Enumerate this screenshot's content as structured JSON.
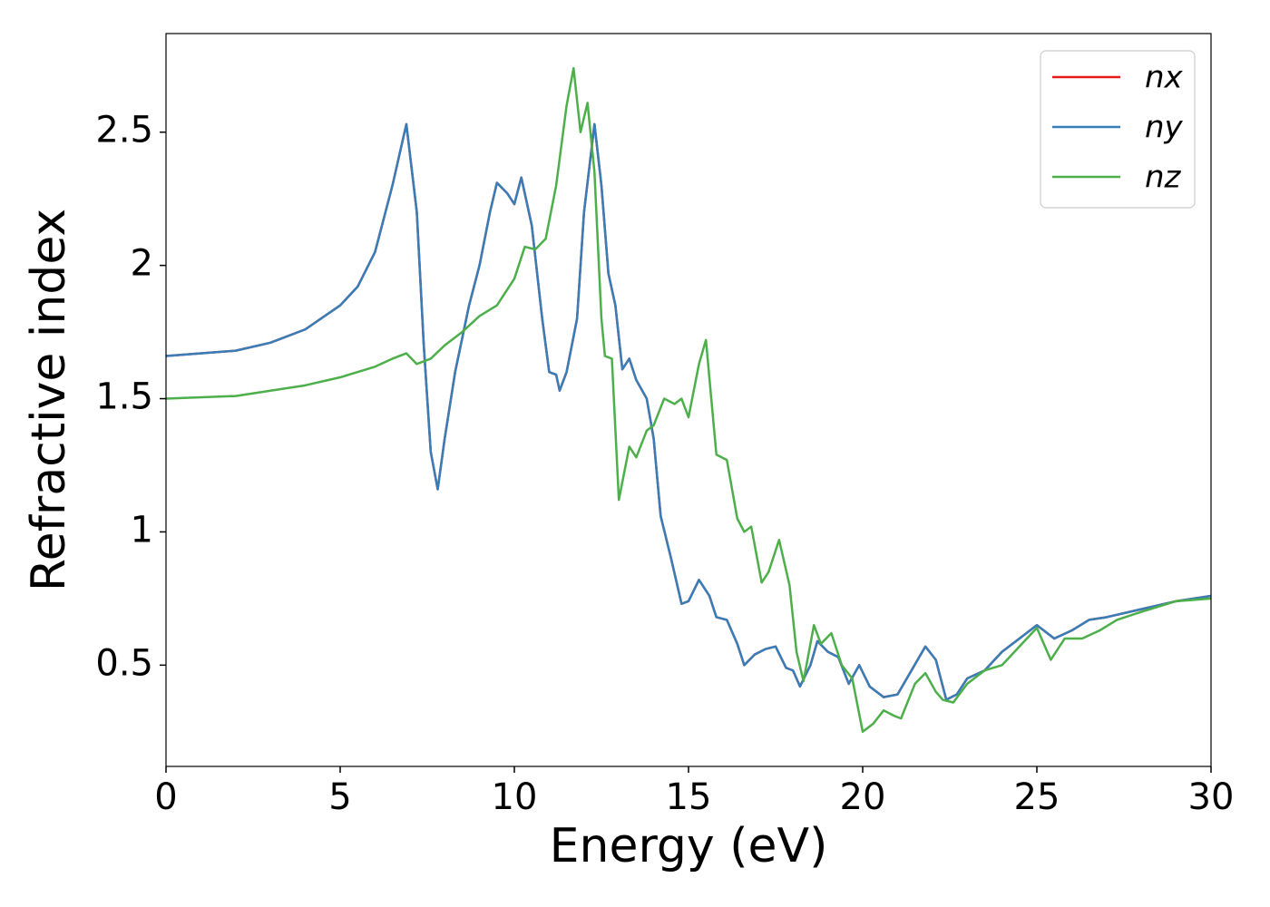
{
  "chart_data": {
    "type": "line",
    "xlabel": "Energy (eV)",
    "ylabel": "Refractive index",
    "xlim": [
      0,
      30
    ],
    "xticks": [
      0,
      5,
      10,
      15,
      20,
      25,
      30
    ],
    "ylim": [
      0.12,
      2.87
    ],
    "yticks": [
      0.5,
      1.0,
      1.5,
      2.0,
      2.5
    ],
    "legend": "upper right",
    "series": [
      {
        "name": "nx",
        "color": "#e41a1c",
        "x": [
          0,
          2,
          3,
          4,
          5,
          5.5,
          6,
          6.5,
          6.9,
          7.2,
          7.4,
          7.6,
          7.8,
          8.0,
          8.3,
          8.7,
          9.0,
          9.3,
          9.5,
          9.8,
          10.0,
          10.2,
          10.5,
          10.8,
          11.0,
          11.2,
          11.3,
          11.5,
          11.8,
          12.0,
          12.3,
          12.5,
          12.7,
          12.9,
          13.1,
          13.3,
          13.5,
          13.8,
          14.0,
          14.2,
          14.5,
          14.8,
          15.0,
          15.3,
          15.6,
          15.8,
          16.1,
          16.4,
          16.6,
          16.9,
          17.2,
          17.5,
          17.8,
          18.0,
          18.2,
          18.5,
          18.7,
          19.0,
          19.3,
          19.6,
          19.9,
          20.2,
          20.6,
          21.0,
          21.4,
          21.8,
          22.1,
          22.4,
          22.7,
          23.0,
          23.5,
          24.0,
          24.5,
          25.0,
          25.5,
          26.0,
          26.5,
          27.0,
          28.0,
          29.0,
          30.0
        ],
        "values": [
          1.66,
          1.68,
          1.71,
          1.76,
          1.85,
          1.92,
          2.05,
          2.3,
          2.53,
          2.2,
          1.7,
          1.3,
          1.16,
          1.35,
          1.6,
          1.85,
          2.0,
          2.2,
          2.31,
          2.27,
          2.23,
          2.33,
          2.15,
          1.8,
          1.6,
          1.59,
          1.53,
          1.6,
          1.8,
          2.2,
          2.53,
          2.3,
          1.97,
          1.85,
          1.61,
          1.65,
          1.57,
          1.5,
          1.35,
          1.06,
          0.9,
          0.73,
          0.74,
          0.82,
          0.76,
          0.68,
          0.67,
          0.58,
          0.5,
          0.54,
          0.56,
          0.57,
          0.49,
          0.48,
          0.42,
          0.5,
          0.59,
          0.55,
          0.53,
          0.43,
          0.5,
          0.42,
          0.38,
          0.39,
          0.48,
          0.57,
          0.52,
          0.37,
          0.39,
          0.45,
          0.48,
          0.55,
          0.6,
          0.65,
          0.6,
          0.63,
          0.67,
          0.68,
          0.71,
          0.74,
          0.76
        ]
      },
      {
        "name": "ny",
        "color": "#377eb8",
        "x": [
          0,
          2,
          3,
          4,
          5,
          5.5,
          6,
          6.5,
          6.9,
          7.2,
          7.4,
          7.6,
          7.8,
          8.0,
          8.3,
          8.7,
          9.0,
          9.3,
          9.5,
          9.8,
          10.0,
          10.2,
          10.5,
          10.8,
          11.0,
          11.2,
          11.3,
          11.5,
          11.8,
          12.0,
          12.3,
          12.5,
          12.7,
          12.9,
          13.1,
          13.3,
          13.5,
          13.8,
          14.0,
          14.2,
          14.5,
          14.8,
          15.0,
          15.3,
          15.6,
          15.8,
          16.1,
          16.4,
          16.6,
          16.9,
          17.2,
          17.5,
          17.8,
          18.0,
          18.2,
          18.5,
          18.7,
          19.0,
          19.3,
          19.6,
          19.9,
          20.2,
          20.6,
          21.0,
          21.4,
          21.8,
          22.1,
          22.4,
          22.7,
          23.0,
          23.5,
          24.0,
          24.5,
          25.0,
          25.5,
          26.0,
          26.5,
          27.0,
          28.0,
          29.0,
          30.0
        ],
        "values": [
          1.66,
          1.68,
          1.71,
          1.76,
          1.85,
          1.92,
          2.05,
          2.3,
          2.53,
          2.2,
          1.7,
          1.3,
          1.16,
          1.35,
          1.6,
          1.85,
          2.0,
          2.2,
          2.31,
          2.27,
          2.23,
          2.33,
          2.15,
          1.8,
          1.6,
          1.59,
          1.53,
          1.6,
          1.8,
          2.2,
          2.53,
          2.3,
          1.97,
          1.85,
          1.61,
          1.65,
          1.57,
          1.5,
          1.35,
          1.06,
          0.9,
          0.73,
          0.74,
          0.82,
          0.76,
          0.68,
          0.67,
          0.58,
          0.5,
          0.54,
          0.56,
          0.57,
          0.49,
          0.48,
          0.42,
          0.5,
          0.59,
          0.55,
          0.53,
          0.43,
          0.5,
          0.42,
          0.38,
          0.39,
          0.48,
          0.57,
          0.52,
          0.37,
          0.39,
          0.45,
          0.48,
          0.55,
          0.6,
          0.65,
          0.6,
          0.63,
          0.67,
          0.68,
          0.71,
          0.74,
          0.76
        ]
      },
      {
        "name": "nz",
        "color": "#4daf4a",
        "x": [
          0,
          2,
          3,
          4,
          5,
          6,
          6.5,
          6.9,
          7.2,
          7.6,
          8.0,
          8.5,
          9.0,
          9.5,
          10.0,
          10.3,
          10.6,
          10.9,
          11.2,
          11.5,
          11.7,
          11.9,
          12.1,
          12.3,
          12.5,
          12.6,
          12.8,
          13.0,
          13.3,
          13.5,
          13.8,
          14.0,
          14.3,
          14.6,
          14.8,
          15.0,
          15.3,
          15.5,
          15.8,
          16.1,
          16.4,
          16.6,
          16.8,
          17.1,
          17.3,
          17.6,
          17.9,
          18.1,
          18.3,
          18.6,
          18.8,
          19.1,
          19.4,
          19.7,
          20.0,
          20.3,
          20.6,
          20.9,
          21.1,
          21.5,
          21.8,
          22.1,
          22.3,
          22.6,
          23.0,
          23.5,
          24.0,
          24.5,
          25.0,
          25.4,
          25.8,
          26.3,
          26.8,
          27.3,
          28.0,
          29.0,
          30.0
        ],
        "values": [
          1.5,
          1.51,
          1.53,
          1.55,
          1.58,
          1.62,
          1.65,
          1.67,
          1.63,
          1.65,
          1.7,
          1.75,
          1.81,
          1.85,
          1.95,
          2.07,
          2.06,
          2.1,
          2.3,
          2.6,
          2.74,
          2.5,
          2.61,
          2.35,
          1.8,
          1.66,
          1.65,
          1.12,
          1.32,
          1.28,
          1.38,
          1.4,
          1.5,
          1.48,
          1.5,
          1.43,
          1.63,
          1.72,
          1.29,
          1.27,
          1.05,
          1.0,
          1.02,
          0.81,
          0.85,
          0.97,
          0.8,
          0.55,
          0.44,
          0.65,
          0.58,
          0.62,
          0.5,
          0.45,
          0.25,
          0.28,
          0.33,
          0.31,
          0.3,
          0.43,
          0.47,
          0.4,
          0.37,
          0.36,
          0.43,
          0.48,
          0.5,
          0.57,
          0.64,
          0.52,
          0.6,
          0.6,
          0.63,
          0.67,
          0.7,
          0.74,
          0.75
        ]
      }
    ]
  }
}
